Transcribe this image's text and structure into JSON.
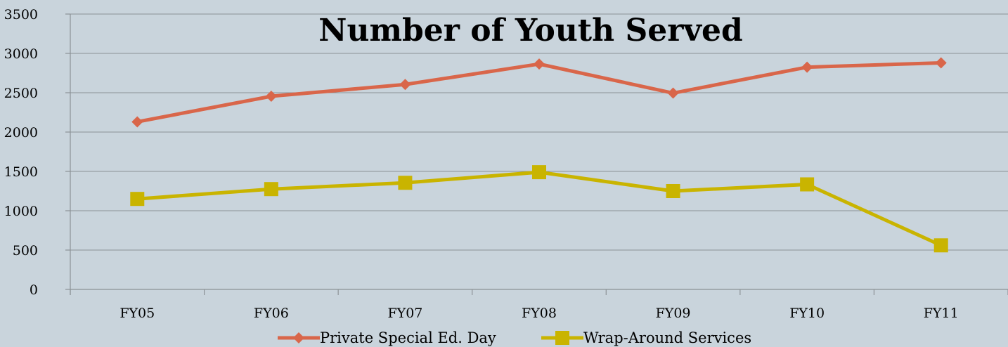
{
  "chart_data": {
    "type": "line",
    "title": "Number of Youth Served",
    "categories": [
      "FY05",
      "FY06",
      "FY07",
      "FY08",
      "FY09",
      "FY10",
      "FY11"
    ],
    "ylim": [
      0,
      3500
    ],
    "y_ticks": [
      "0",
      "500",
      "1000",
      "1500",
      "2000",
      "2500",
      "3000",
      "3500"
    ],
    "grid": true,
    "legend_position": "bottom",
    "series": [
      {
        "name": "Private Special Ed. Day",
        "values": [
          2130,
          2455,
          2605,
          2865,
          2495,
          2825,
          2880
        ],
        "color": "#d9664a",
        "marker": "diamond"
      },
      {
        "name": "Wrap-Around Services",
        "values": [
          1150,
          1275,
          1355,
          1490,
          1250,
          1335,
          560
        ],
        "color": "#c9b400",
        "marker": "square"
      }
    ]
  }
}
